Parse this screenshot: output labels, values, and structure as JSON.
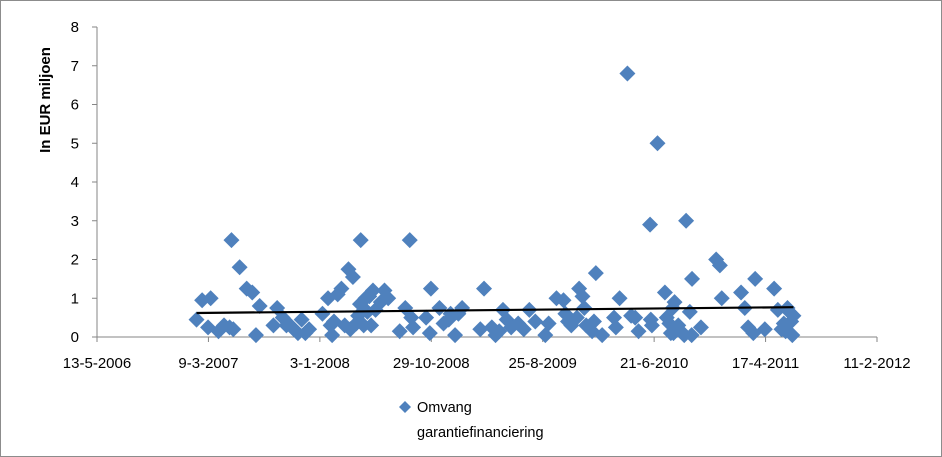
{
  "chart_data": {
    "type": "scatter",
    "title": "",
    "xlabel": "",
    "ylabel": "In EUR miljoen",
    "x_type": "date",
    "xlim": [
      "2006-05-13",
      "2012-02-11"
    ],
    "ylim": [
      0,
      8
    ],
    "x_ticks": [
      "13-5-2006",
      "9-3-2007",
      "3-1-2008",
      "29-10-2008",
      "25-8-2009",
      "21-6-2010",
      "17-4-2011",
      "11-2-2012"
    ],
    "y_ticks": [
      "0",
      "1",
      "2",
      "3",
      "4",
      "5",
      "6",
      "7",
      "8"
    ],
    "grid": false,
    "legend_position": "bottom",
    "colors": {
      "marker": "#4f81bd",
      "trendline": "#000000",
      "axis": "#868686"
    },
    "series": [
      {
        "name": "Omvang garantiefinanciering",
        "marker": "diamond",
        "points": [
          [
            "2007-02-05",
            0.45
          ],
          [
            "2007-02-20",
            0.95
          ],
          [
            "2007-03-08",
            0.25
          ],
          [
            "2007-03-15",
            1.0
          ],
          [
            "2007-04-05",
            0.15
          ],
          [
            "2007-04-20",
            0.3
          ],
          [
            "2007-05-05",
            0.25
          ],
          [
            "2007-05-10",
            2.5
          ],
          [
            "2007-05-15",
            0.2
          ],
          [
            "2007-06-01",
            1.8
          ],
          [
            "2007-06-20",
            1.25
          ],
          [
            "2007-07-05",
            1.15
          ],
          [
            "2007-07-15",
            0.05
          ],
          [
            "2007-07-25",
            0.8
          ],
          [
            "2007-08-31",
            0.3
          ],
          [
            "2007-09-10",
            0.75
          ],
          [
            "2007-09-25",
            0.5
          ],
          [
            "2007-10-05",
            0.3
          ],
          [
            "2007-10-15",
            0.3
          ],
          [
            "2007-10-25",
            0.2
          ],
          [
            "2007-11-05",
            0.1
          ],
          [
            "2007-11-15",
            0.45
          ],
          [
            "2007-11-25",
            0.1
          ],
          [
            "2007-12-05",
            0.2
          ],
          [
            "2008-01-10",
            0.6
          ],
          [
            "2008-01-25",
            1.0
          ],
          [
            "2008-02-01",
            0.3
          ],
          [
            "2008-02-05",
            0.05
          ],
          [
            "2008-02-10",
            0.4
          ],
          [
            "2008-02-20",
            1.1
          ],
          [
            "2008-03-01",
            1.25
          ],
          [
            "2008-03-10",
            0.3
          ],
          [
            "2008-03-20",
            1.75
          ],
          [
            "2008-03-25",
            0.2
          ],
          [
            "2008-04-01",
            1.55
          ],
          [
            "2008-04-10",
            0.35
          ],
          [
            "2008-04-15",
            0.55
          ],
          [
            "2008-04-20",
            0.85
          ],
          [
            "2008-04-22",
            2.5
          ],
          [
            "2008-04-30",
            0.3
          ],
          [
            "2008-05-05",
            1.0
          ],
          [
            "2008-05-10",
            0.65
          ],
          [
            "2008-05-15",
            1.05
          ],
          [
            "2008-05-20",
            0.3
          ],
          [
            "2008-05-25",
            1.2
          ],
          [
            "2008-06-01",
            0.7
          ],
          [
            "2008-06-15",
            0.9
          ],
          [
            "2008-06-25",
            1.2
          ],
          [
            "2008-07-05",
            1.0
          ],
          [
            "2008-08-05",
            0.15
          ],
          [
            "2008-08-20",
            0.75
          ],
          [
            "2008-09-01",
            2.5
          ],
          [
            "2008-09-05",
            0.5
          ],
          [
            "2008-09-10",
            0.25
          ],
          [
            "2008-10-15",
            0.5
          ],
          [
            "2008-10-25",
            0.1
          ],
          [
            "2008-10-28",
            1.25
          ],
          [
            "2008-11-20",
            0.75
          ],
          [
            "2008-12-01",
            0.35
          ],
          [
            "2008-12-15",
            0.45
          ],
          [
            "2008-12-20",
            0.6
          ],
          [
            "2009-01-01",
            0.05
          ],
          [
            "2009-01-10",
            0.6
          ],
          [
            "2009-01-20",
            0.75
          ],
          [
            "2009-03-10",
            0.2
          ],
          [
            "2009-03-20",
            1.25
          ],
          [
            "2009-04-10",
            0.25
          ],
          [
            "2009-04-20",
            0.05
          ],
          [
            "2009-04-30",
            0.15
          ],
          [
            "2009-05-10",
            0.7
          ],
          [
            "2009-05-20",
            0.45
          ],
          [
            "2009-06-01",
            0.25
          ],
          [
            "2009-06-20",
            0.35
          ],
          [
            "2009-07-05",
            0.2
          ],
          [
            "2009-07-20",
            0.7
          ],
          [
            "2009-08-05",
            0.4
          ],
          [
            "2009-09-01",
            0.05
          ],
          [
            "2009-09-10",
            0.35
          ],
          [
            "2009-10-01",
            1.0
          ],
          [
            "2009-10-20",
            0.95
          ],
          [
            "2009-10-25",
            0.6
          ],
          [
            "2009-11-01",
            0.4
          ],
          [
            "2009-11-10",
            0.3
          ],
          [
            "2009-11-25",
            0.5
          ],
          [
            "2009-12-01",
            1.25
          ],
          [
            "2009-12-10",
            1.05
          ],
          [
            "2009-12-15",
            0.75
          ],
          [
            "2009-12-20",
            0.3
          ],
          [
            "2010-01-05",
            0.15
          ],
          [
            "2010-01-10",
            0.4
          ],
          [
            "2010-01-15",
            1.65
          ],
          [
            "2010-02-01",
            0.05
          ],
          [
            "2010-03-05",
            0.5
          ],
          [
            "2010-03-10",
            0.25
          ],
          [
            "2010-03-20",
            1.0
          ],
          [
            "2010-04-10",
            6.8
          ],
          [
            "2010-04-20",
            0.55
          ],
          [
            "2010-05-01",
            0.5
          ],
          [
            "2010-05-10",
            0.15
          ],
          [
            "2010-06-10",
            2.9
          ],
          [
            "2010-06-12",
            0.45
          ],
          [
            "2010-06-15",
            0.3
          ],
          [
            "2010-06-30",
            5.0
          ],
          [
            "2010-07-20",
            1.15
          ],
          [
            "2010-07-25",
            0.5
          ],
          [
            "2010-08-01",
            0.35
          ],
          [
            "2010-08-05",
            0.1
          ],
          [
            "2010-08-10",
            0.75
          ],
          [
            "2010-08-12",
            0.1
          ],
          [
            "2010-08-15",
            0.9
          ],
          [
            "2010-08-25",
            0.3
          ],
          [
            "2010-09-01",
            0.15
          ],
          [
            "2010-09-10",
            0.05
          ],
          [
            "2010-09-15",
            3.0
          ],
          [
            "2010-09-25",
            0.65
          ],
          [
            "2010-09-30",
            0.05
          ],
          [
            "2010-10-01",
            1.5
          ],
          [
            "2010-10-25",
            0.25
          ],
          [
            "2010-12-05",
            2.0
          ],
          [
            "2010-12-15",
            1.85
          ],
          [
            "2010-12-20",
            1.0
          ],
          [
            "2011-02-10",
            1.15
          ],
          [
            "2011-02-20",
            0.75
          ],
          [
            "2011-03-01",
            0.25
          ],
          [
            "2011-03-15",
            0.1
          ],
          [
            "2011-03-20",
            1.5
          ],
          [
            "2011-04-15",
            0.2
          ],
          [
            "2011-05-10",
            1.25
          ],
          [
            "2011-05-20",
            0.7
          ],
          [
            "2011-05-30",
            0.2
          ],
          [
            "2011-06-05",
            0.35
          ],
          [
            "2011-06-10",
            0.15
          ],
          [
            "2011-06-15",
            0.75
          ],
          [
            "2011-06-20",
            0.65
          ],
          [
            "2011-06-25",
            0.4
          ],
          [
            "2011-06-28",
            0.05
          ],
          [
            "2011-07-01",
            0.55
          ]
        ]
      }
    ],
    "trendline": {
      "type": "linear",
      "x": [
        "2007-02-05",
        "2011-07-01"
      ],
      "y": [
        0.62,
        0.77
      ]
    }
  }
}
